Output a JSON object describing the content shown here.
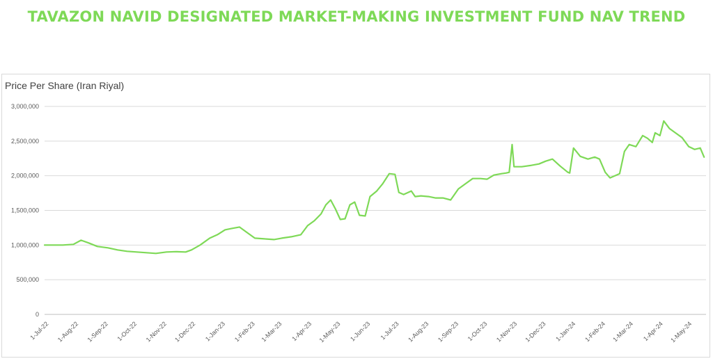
{
  "title": "TAVAZON NAVID DESIGNATED MARKET-MAKING INVESTMENT FUND NAV TREND",
  "colors": {
    "title": "#7ed957",
    "line": "#7ed957",
    "grid": "#d9d9d9",
    "text": "#595959"
  },
  "chart_data": {
    "type": "line",
    "title": "",
    "ylabel": "Price Per Share (Iran Riyal)",
    "xlabel": "",
    "ylim": [
      0,
      3000000
    ],
    "yticks": [
      0,
      500000,
      1000000,
      1500000,
      2000000,
      2500000,
      3000000
    ],
    "ytick_labels": [
      "0",
      "500,000",
      "1,000,000",
      "1,500,000",
      "2,000,000",
      "2,500,000",
      "3,000,000"
    ],
    "xtick_labels": [
      "1-Jul-22",
      "1-Aug-22",
      "1-Sep-22",
      "1-Oct-22",
      "1-Nov-22",
      "1-Dec-22",
      "1-Jan-23",
      "1-Feb-23",
      "1-Mar-23",
      "1-Apr-23",
      "1-May-23",
      "1-Jun-23",
      "1-Jul-23",
      "1-Aug-23",
      "1-Sep-23",
      "1-Oct-23",
      "1-Nov-23",
      "1-Dec-23",
      "1-Jan-24",
      "1-Feb-24",
      "1-Mar-24",
      "1-Apr-24",
      "1-May-24"
    ],
    "grid": true,
    "legend": "none",
    "series": [
      {
        "x": [
          "2022-07-01",
          "2022-07-20",
          "2022-07-31",
          "2022-08-08",
          "2022-08-16",
          "2022-08-25",
          "2022-09-05",
          "2022-09-15",
          "2022-09-25",
          "2022-10-05",
          "2022-10-15",
          "2022-10-25",
          "2022-11-05",
          "2022-11-15",
          "2022-11-25",
          "2022-12-01",
          "2022-12-10",
          "2022-12-20",
          "2022-12-28",
          "2023-01-05",
          "2023-01-12",
          "2023-01-20",
          "2023-01-28",
          "2023-02-05",
          "2023-02-15",
          "2023-02-25",
          "2023-03-05",
          "2023-03-15",
          "2023-03-25",
          "2023-04-01",
          "2023-04-08",
          "2023-04-15",
          "2023-04-20",
          "2023-04-25",
          "2023-04-30",
          "2023-05-05",
          "2023-05-10",
          "2023-05-15",
          "2023-05-20",
          "2023-05-25",
          "2023-05-31",
          "2023-06-05",
          "2023-06-12",
          "2023-06-18",
          "2023-06-25",
          "2023-07-01",
          "2023-07-05",
          "2023-07-10",
          "2023-07-18",
          "2023-07-22",
          "2023-07-28",
          "2023-08-05",
          "2023-08-12",
          "2023-08-20",
          "2023-08-28",
          "2023-09-05",
          "2023-09-12",
          "2023-09-20",
          "2023-09-28",
          "2023-10-05",
          "2023-10-12",
          "2023-10-20",
          "2023-10-25",
          "2023-10-28",
          "2023-10-31",
          "2023-11-02",
          "2023-11-10",
          "2023-11-20",
          "2023-11-28",
          "2023-12-05",
          "2023-12-12",
          "2023-12-20",
          "2023-12-28",
          "2023-12-30",
          "2024-01-03",
          "2024-01-10",
          "2024-01-18",
          "2024-01-25",
          "2024-01-30",
          "2024-02-05",
          "2024-02-10",
          "2024-02-15",
          "2024-02-20",
          "2024-02-25",
          "2024-03-01",
          "2024-03-08",
          "2024-03-15",
          "2024-03-20",
          "2024-03-25",
          "2024-03-28",
          "2024-04-02",
          "2024-04-06",
          "2024-04-12",
          "2024-04-18",
          "2024-04-25",
          "2024-05-02",
          "2024-05-08",
          "2024-05-14",
          "2024-05-18"
        ],
        "values": [
          1000000,
          1000000,
          1010000,
          1070000,
          1030000,
          980000,
          960000,
          930000,
          910000,
          900000,
          890000,
          880000,
          900000,
          905000,
          900000,
          930000,
          1000000,
          1100000,
          1150000,
          1220000,
          1240000,
          1260000,
          1180000,
          1100000,
          1090000,
          1080000,
          1100000,
          1120000,
          1150000,
          1280000,
          1350000,
          1450000,
          1580000,
          1650000,
          1520000,
          1370000,
          1380000,
          1580000,
          1620000,
          1430000,
          1420000,
          1700000,
          1780000,
          1880000,
          2030000,
          2020000,
          1760000,
          1730000,
          1780000,
          1700000,
          1710000,
          1700000,
          1680000,
          1680000,
          1650000,
          1810000,
          1880000,
          1960000,
          1960000,
          1950000,
          2010000,
          2030000,
          2040000,
          2050000,
          2450000,
          2130000,
          2130000,
          2150000,
          2170000,
          2210000,
          2240000,
          2140000,
          2050000,
          2040000,
          2400000,
          2280000,
          2240000,
          2270000,
          2240000,
          2050000,
          1970000,
          2000000,
          2030000,
          2350000,
          2450000,
          2420000,
          2580000,
          2540000,
          2480000,
          2620000,
          2580000,
          2790000,
          2680000,
          2620000,
          2550000,
          2420000,
          2380000,
          2400000,
          2270000
        ]
      }
    ]
  }
}
